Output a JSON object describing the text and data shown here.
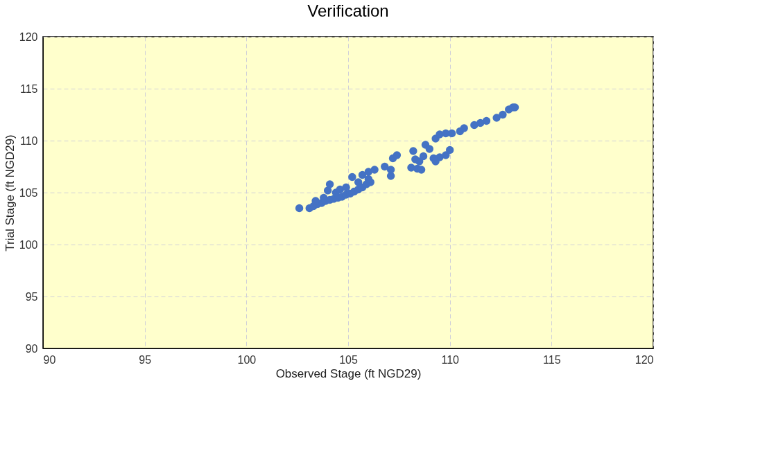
{
  "chart_data": {
    "type": "scatter",
    "title": "Verification",
    "xlabel": "Observed Stage (ft NGD29)",
    "ylabel": "Trial Stage (ft NGD29)",
    "xlim": [
      90,
      120
    ],
    "ylim": [
      90,
      120
    ],
    "xticks": [
      90,
      95,
      100,
      105,
      110,
      115,
      120
    ],
    "yticks": [
      90,
      95,
      100,
      105,
      110,
      115,
      120
    ],
    "grid": true,
    "marker": "circle",
    "series": [
      {
        "color": "#4472c4",
        "x": [
          102.6,
          103.1,
          103.3,
          103.5,
          103.7,
          103.9,
          104.1,
          104.3,
          104.5,
          104.7,
          104.9,
          105.1,
          105.3,
          105.5,
          105.7,
          105.9,
          106.1,
          103.4,
          103.8,
          104.0,
          104.1,
          104.4,
          104.6,
          104.9,
          105.2,
          105.5,
          105.7,
          106.0,
          106.3,
          106.0,
          106.8,
          107.1,
          107.1,
          107.2,
          107.4,
          108.2,
          108.1,
          108.3,
          108.4,
          108.5,
          108.6,
          108.7,
          108.8,
          109.0,
          109.2,
          109.5,
          109.8,
          110.0,
          109.3,
          109.5,
          109.8,
          110.1,
          110.5,
          110.7,
          111.2,
          111.5,
          111.8,
          112.3,
          112.6,
          112.9,
          113.1,
          113.2,
          109.3
        ],
        "values": [
          103.5,
          103.5,
          103.7,
          103.9,
          104.0,
          104.2,
          104.3,
          104.4,
          104.5,
          104.6,
          104.8,
          104.9,
          105.1,
          105.3,
          105.5,
          105.8,
          106.0,
          104.2,
          104.5,
          105.2,
          105.8,
          105.0,
          105.3,
          105.5,
          106.5,
          106.0,
          106.7,
          107.0,
          107.2,
          106.3,
          107.5,
          106.6,
          107.2,
          108.3,
          108.6,
          109.0,
          107.4,
          108.2,
          107.3,
          108.0,
          107.2,
          108.5,
          109.6,
          109.2,
          108.3,
          108.4,
          108.6,
          109.1,
          110.2,
          110.6,
          110.7,
          110.7,
          110.9,
          111.2,
          111.5,
          111.7,
          111.9,
          112.2,
          112.5,
          113.0,
          113.2,
          113.2,
          108.0
        ]
      }
    ]
  }
}
